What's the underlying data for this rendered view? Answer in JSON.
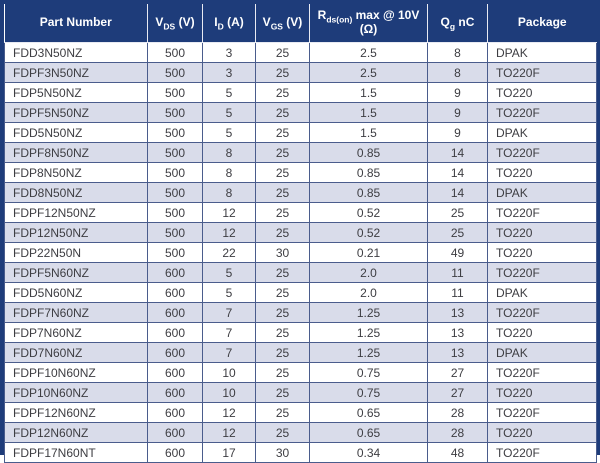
{
  "colors": {
    "header_bg": "#1e3c7a",
    "header_text": "#ffffff",
    "row_alt_bg": "#d9dcea",
    "row_bg": "#ffffff",
    "grid_line": "#4a5c8c",
    "body_text": "#3d3d42",
    "outer_border": "#1e3c7a"
  },
  "table": {
    "columns": [
      {
        "id": "part-number",
        "align": "left",
        "segments": [
          {
            "t": "Part Number"
          }
        ]
      },
      {
        "id": "vds",
        "align": "center",
        "segments": [
          {
            "t": "V"
          },
          {
            "sub": "DS"
          },
          {
            "t": " (V)"
          }
        ]
      },
      {
        "id": "id",
        "align": "center",
        "segments": [
          {
            "t": "I"
          },
          {
            "sub": "D"
          },
          {
            "t": " (A)"
          }
        ]
      },
      {
        "id": "vgs",
        "align": "center",
        "segments": [
          {
            "t": "V"
          },
          {
            "sub": "GS"
          },
          {
            "t": " (V)"
          }
        ]
      },
      {
        "id": "rdson",
        "align": "center",
        "segments": [
          {
            "t": "R"
          },
          {
            "sub": "ds(on)"
          },
          {
            "t": " max @ 10V"
          },
          {
            "br": true
          },
          {
            "t": "(Ω)"
          }
        ]
      },
      {
        "id": "qg",
        "align": "center",
        "segments": [
          {
            "t": "Q"
          },
          {
            "sub": "g"
          },
          {
            "t": " nC"
          }
        ]
      },
      {
        "id": "package",
        "align": "left",
        "segments": [
          {
            "t": "Package"
          }
        ]
      }
    ],
    "rows": [
      [
        "FDD3N50NZ",
        "500",
        "3",
        "25",
        "2.5",
        "8",
        "DPAK"
      ],
      [
        "FDPF3N50NZ",
        "500",
        "3",
        "25",
        "2.5",
        "8",
        "TO220F"
      ],
      [
        "FDP5N50NZ",
        "500",
        "5",
        "25",
        "1.5",
        "9",
        "TO220"
      ],
      [
        "FDPF5N50NZ",
        "500",
        "5",
        "25",
        "1.5",
        "9",
        "TO220F"
      ],
      [
        "FDD5N50NZ",
        "500",
        "5",
        "25",
        "1.5",
        "9",
        "DPAK"
      ],
      [
        "FDPF8N50NZ",
        "500",
        "8",
        "25",
        "0.85",
        "14",
        "TO220F"
      ],
      [
        "FDP8N50NZ",
        "500",
        "8",
        "25",
        "0.85",
        "14",
        "TO220"
      ],
      [
        "FDD8N50NZ",
        "500",
        "8",
        "25",
        "0.85",
        "14",
        "DPAK"
      ],
      [
        "FDPF12N50NZ",
        "500",
        "12",
        "25",
        "0.52",
        "25",
        "TO220F"
      ],
      [
        "FDP12N50NZ",
        "500",
        "12",
        "25",
        "0.52",
        "25",
        "TO220"
      ],
      [
        "FDP22N50N",
        "500",
        "22",
        "30",
        "0.21",
        "49",
        "TO220"
      ],
      [
        "FDPF5N60NZ",
        "600",
        "5",
        "25",
        "2.0",
        "11",
        "TO220F"
      ],
      [
        "FDD5N60NZ",
        "600",
        "5",
        "25",
        "2.0",
        "11",
        "DPAK"
      ],
      [
        "FDPF7N60NZ",
        "600",
        "7",
        "25",
        "1.25",
        "13",
        "TO220F"
      ],
      [
        "FDP7N60NZ",
        "600",
        "7",
        "25",
        "1.25",
        "13",
        "TO220"
      ],
      [
        "FDD7N60NZ",
        "600",
        "7",
        "25",
        "1.25",
        "13",
        "DPAK"
      ],
      [
        "FDPF10N60NZ",
        "600",
        "10",
        "25",
        "0.75",
        "27",
        "TO220F"
      ],
      [
        "FDP10N60NZ",
        "600",
        "10",
        "25",
        "0.75",
        "27",
        "TO220"
      ],
      [
        "FDPF12N60NZ",
        "600",
        "12",
        "25",
        "0.65",
        "28",
        "TO220F"
      ],
      [
        "FDP12N60NZ",
        "600",
        "12",
        "25",
        "0.65",
        "28",
        "TO220"
      ],
      [
        "FDPF17N60NT",
        "600",
        "17",
        "30",
        "0.34",
        "48",
        "TO220F"
      ]
    ]
  }
}
